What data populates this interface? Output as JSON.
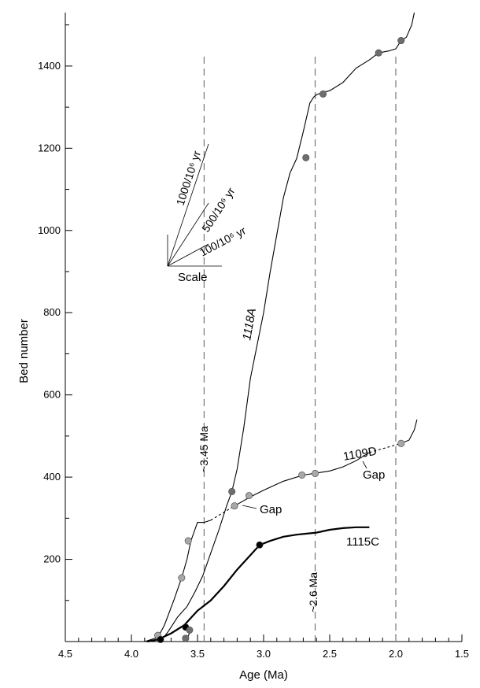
{
  "chart_data": {
    "type": "line",
    "xlabel": "Age (Ma)",
    "ylabel": "Bed number",
    "xlim": [
      4.5,
      1.5
    ],
    "ylim": [
      0,
      1530
    ],
    "x_reversed": true,
    "x_ticks": [
      4.5,
      4.0,
      3.5,
      3.0,
      2.5,
      2.0,
      1.5
    ],
    "x_tick_labels": [
      "4.5",
      "4.0",
      "3.5",
      "3.0",
      "2.5",
      "2.0",
      "1.5"
    ],
    "y_ticks": [
      200,
      400,
      600,
      800,
      1000,
      1200,
      1400
    ],
    "y_tick_labels": [
      "200",
      "400",
      "600",
      "800",
      "1000",
      "1200",
      "1400"
    ],
    "grid": false,
    "series": [
      {
        "name": "1118A",
        "color": "#000000",
        "style": "solid",
        "x": [
          3.78,
          3.72,
          3.65,
          3.58,
          3.52,
          3.46,
          3.4,
          3.34,
          3.28,
          3.24,
          3.2,
          3.15,
          3.1,
          3.05,
          3.0,
          2.95,
          2.9,
          2.85,
          2.8,
          2.75,
          2.7,
          2.65,
          2.62,
          2.6,
          2.56,
          2.5,
          2.4,
          2.3,
          2.2,
          2.13,
          2.05,
          2.0,
          1.96,
          1.92,
          1.88,
          1.86
        ],
        "y": [
          0,
          25,
          60,
          85,
          120,
          160,
          215,
          270,
          330,
          365,
          420,
          520,
          640,
          720,
          800,
          900,
          990,
          1080,
          1140,
          1175,
          1240,
          1310,
          1325,
          1330,
          1335,
          1340,
          1360,
          1395,
          1415,
          1432,
          1437,
          1442,
          1462,
          1470,
          1500,
          1530
        ],
        "markers": [
          {
            "x": 3.24,
            "y": 365
          },
          {
            "x": 2.68,
            "y": 1177
          },
          {
            "x": 2.55,
            "y": 1332
          },
          {
            "x": 2.13,
            "y": 1432
          },
          {
            "x": 1.96,
            "y": 1462
          }
        ],
        "marker_color": "#6e6e6e"
      },
      {
        "name": "1109D",
        "color": "#000000",
        "style": "solid",
        "x": [
          3.9,
          3.8,
          3.75,
          3.68,
          3.62,
          3.58,
          3.55,
          3.5,
          3.45,
          3.4
        ],
        "y": [
          0,
          10,
          40,
          100,
          155,
          200,
          245,
          290,
          290,
          295
        ],
        "markers": [
          {
            "x": 3.8,
            "y": 15
          },
          {
            "x": 3.62,
            "y": 155
          },
          {
            "x": 3.57,
            "y": 245
          }
        ],
        "marker_color": "#a8a8a8"
      },
      {
        "name": "1109D gap",
        "color": "#000000",
        "style": "dotted",
        "x": [
          3.4,
          3.22
        ],
        "y": [
          295,
          330
        ],
        "markers": []
      },
      {
        "name": "1109D",
        "color": "#000000",
        "style": "solid",
        "x": [
          3.22,
          3.1,
          3.0,
          2.85,
          2.7,
          2.6,
          2.5,
          2.4,
          2.3,
          2.2
        ],
        "y": [
          330,
          352,
          368,
          390,
          405,
          410,
          415,
          425,
          440,
          460
        ],
        "markers": [
          {
            "x": 3.22,
            "y": 330
          },
          {
            "x": 3.11,
            "y": 355
          },
          {
            "x": 2.71,
            "y": 405
          },
          {
            "x": 2.61,
            "y": 409
          }
        ],
        "marker_color": "#a8a8a8"
      },
      {
        "name": "1109D gap",
        "color": "#000000",
        "style": "dotted",
        "x": [
          2.2,
          1.96
        ],
        "y": [
          460,
          482
        ],
        "markers": []
      },
      {
        "name": "1109D",
        "color": "#000000",
        "style": "solid",
        "x": [
          1.96,
          1.9,
          1.86,
          1.84
        ],
        "y": [
          482,
          490,
          515,
          540
        ],
        "markers": [
          {
            "x": 1.96,
            "y": 482
          }
        ],
        "marker_color": "#a8a8a8"
      },
      {
        "name": "1115C",
        "color": "#000000",
        "style": "solid-thick",
        "x": [
          3.88,
          3.8,
          3.7,
          3.6,
          3.5,
          3.4,
          3.3,
          3.2,
          3.1,
          3.03,
          2.95,
          2.85,
          2.75,
          2.6,
          2.5,
          2.4,
          2.3,
          2.2
        ],
        "y": [
          0,
          5,
          20,
          40,
          75,
          100,
          135,
          175,
          210,
          235,
          245,
          255,
          260,
          265,
          272,
          276,
          278,
          278
        ],
        "markers": [
          {
            "x": 3.78,
            "y": 5
          },
          {
            "x": 3.59,
            "y": 35
          },
          {
            "x": 3.03,
            "y": 235
          }
        ],
        "marker_color": "#000000"
      },
      {
        "name": "1109D lower",
        "color": "#000000",
        "style": "solid",
        "x": [
          3.58,
          3.55
        ],
        "y": [
          5,
          30
        ],
        "markers": [
          {
            "x": 3.59,
            "y": 8
          },
          {
            "x": 3.56,
            "y": 28
          }
        ],
        "marker_color": "#6e6e6e"
      }
    ],
    "ref_lines_x": [
      3.45,
      2.61,
      2.0
    ],
    "labels": {
      "s1118A": "1118A",
      "s1109D": "1109D",
      "s1115C": "1115C",
      "gap1": "Gap",
      "gap2": "Gap",
      "ma345": "~3.45 Ma",
      "ma26": "~2.6 Ma",
      "scale": "Scale",
      "rate1000": "1000/10⁶ yr",
      "rate500": "500/10⁶ yr",
      "rate100": "100/10⁶ yr"
    }
  }
}
